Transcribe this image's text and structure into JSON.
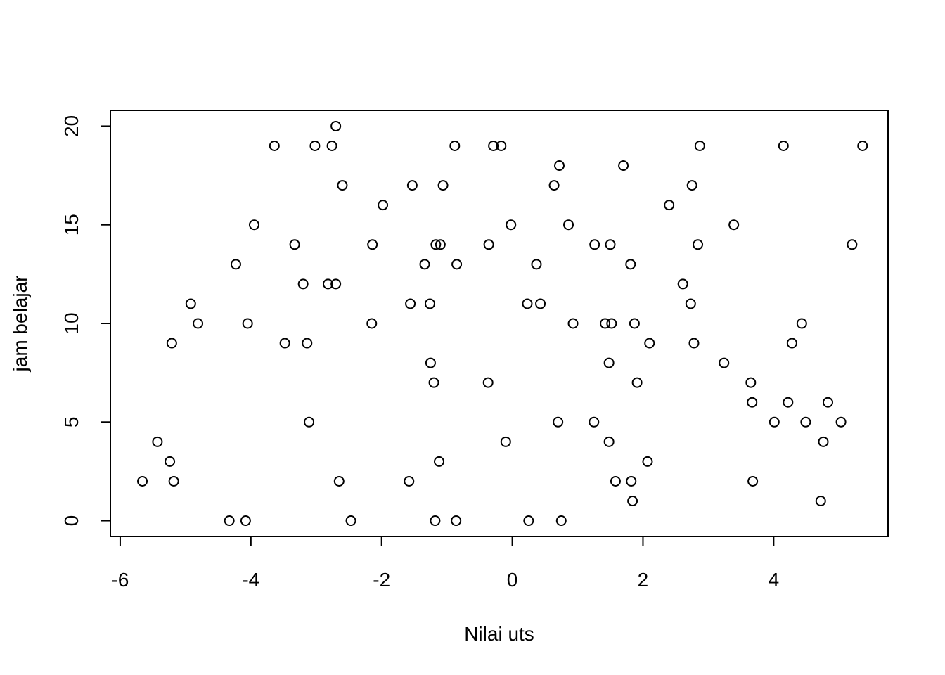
{
  "chart_data": {
    "type": "scatter",
    "xlabel": "Nilai uts",
    "ylabel": "jam belajar",
    "xlim": [
      -6.15,
      5.75
    ],
    "ylim": [
      -0.8,
      20.8
    ],
    "xticks": [
      -6,
      -4,
      -2,
      0,
      2,
      4
    ],
    "xtick_labels": [
      "-6",
      "-4",
      "-2",
      "0",
      "2",
      "4"
    ],
    "yticks": [
      0,
      5,
      10,
      15,
      20
    ],
    "ytick_labels": [
      "0",
      "5",
      "10",
      "15",
      "20"
    ],
    "grid": false,
    "marker": "open-circle",
    "marker_color": "#000000",
    "x": [
      -5.66,
      -5.43,
      -5.24,
      -5.21,
      -5.18,
      -4.92,
      -4.81,
      -4.33,
      -4.23,
      -4.08,
      -4.05,
      -3.95,
      -3.64,
      -3.48,
      -3.33,
      -3.2,
      -3.14,
      -3.11,
      -3.02,
      -2.82,
      -2.76,
      -2.7,
      -2.7,
      -2.65,
      -2.6,
      -2.47,
      -2.15,
      -2.14,
      -1.98,
      -1.58,
      -1.56,
      -1.53,
      -1.34,
      -1.26,
      -1.25,
      -1.2,
      -1.18,
      -1.17,
      -1.12,
      -1.1,
      -1.06,
      -0.88,
      -0.86,
      -0.85,
      -0.37,
      -0.36,
      -0.29,
      -0.17,
      -0.1,
      -0.02,
      0.23,
      0.25,
      0.37,
      0.43,
      0.64,
      0.7,
      0.72,
      0.75,
      0.86,
      0.93,
      1.25,
      1.26,
      1.42,
      1.48,
      1.48,
      1.5,
      1.52,
      1.58,
      1.7,
      1.81,
      1.82,
      1.84,
      1.87,
      1.91,
      2.07,
      2.1,
      2.4,
      2.61,
      2.73,
      2.75,
      2.78,
      2.84,
      2.87,
      3.24,
      3.39,
      3.65,
      3.67,
      3.68,
      4.01,
      4.15,
      4.22,
      4.28,
      4.43,
      4.49,
      4.72,
      4.76,
      4.83,
      5.03,
      5.2,
      5.36
    ],
    "y": [
      2,
      4,
      3,
      9,
      2,
      11,
      10,
      0,
      13,
      0,
      10,
      15,
      19,
      9,
      14,
      12,
      9,
      5,
      19,
      12,
      19,
      20,
      12,
      2,
      17,
      0,
      10,
      14,
      16,
      2,
      11,
      17,
      13,
      11,
      8,
      7,
      0,
      14,
      3,
      14,
      17,
      19,
      0,
      13,
      7,
      14,
      19,
      19,
      4,
      15,
      11,
      0,
      13,
      11,
      17,
      5,
      18,
      0,
      15,
      10,
      5,
      14,
      10,
      4,
      8,
      14,
      10,
      2,
      18,
      13,
      2,
      1,
      10,
      7,
      3,
      9,
      16,
      12,
      11,
      17,
      9,
      14,
      19,
      8,
      15,
      7,
      6,
      2,
      5,
      19,
      6,
      9,
      10,
      5,
      1,
      4,
      6,
      5,
      14,
      19
    ]
  }
}
